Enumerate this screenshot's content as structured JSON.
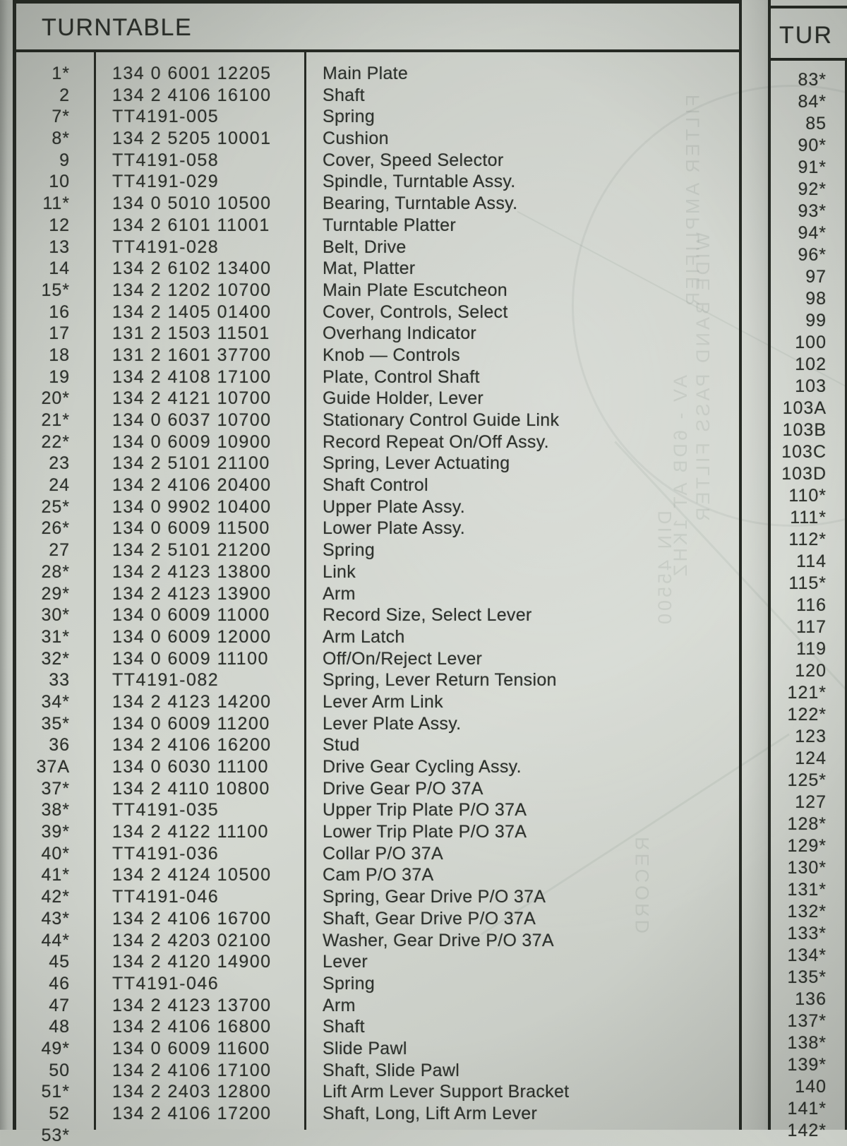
{
  "left_table": {
    "title": "TURNTABLE",
    "rows": [
      {
        "item": "1*",
        "part": "134 0 6001 12205",
        "desc": "Main Plate"
      },
      {
        "item": "2",
        "part": "134 2 4106 16100",
        "desc": "Shaft"
      },
      {
        "item": "7*",
        "part": "TT4191-005",
        "desc": "Spring"
      },
      {
        "item": "8*",
        "part": "134 2 5205 10001",
        "desc": "Cushion"
      },
      {
        "item": "9",
        "part": "TT4191-058",
        "desc": "Cover, Speed Selector"
      },
      {
        "item": "10",
        "part": "TT4191-029",
        "desc": "Spindle, Turntable Assy."
      },
      {
        "item": "11*",
        "part": "134 0 5010 10500",
        "desc": "Bearing, Turntable Assy."
      },
      {
        "item": "12",
        "part": "134 2 6101 11001",
        "desc": "Turntable Platter"
      },
      {
        "item": "13",
        "part": "TT4191-028",
        "desc": "Belt, Drive"
      },
      {
        "item": "14",
        "part": "134 2 6102 13400",
        "desc": "Mat, Platter"
      },
      {
        "item": "15*",
        "part": "134 2 1202 10700",
        "desc": "Main Plate Escutcheon"
      },
      {
        "item": "16",
        "part": "134 2 1405 01400",
        "desc": "Cover, Controls, Select"
      },
      {
        "item": "17",
        "part": "131 2 1503 11501",
        "desc": "Overhang Indicator"
      },
      {
        "item": "18",
        "part": "131 2 1601 37700",
        "desc": "Knob — Controls"
      },
      {
        "item": "19",
        "part": "134 2 4108 17100",
        "desc": "Plate, Control Shaft"
      },
      {
        "item": "20*",
        "part": "134 2 4121 10700",
        "desc": "Guide Holder, Lever"
      },
      {
        "item": "21*",
        "part": "134 0 6037 10700",
        "desc": "Stationary Control Guide Link"
      },
      {
        "item": "22*",
        "part": "134 0 6009 10900",
        "desc": "Record Repeat On/Off Assy."
      },
      {
        "item": "23",
        "part": "134 2 5101 21100",
        "desc": "Spring, Lever Actuating"
      },
      {
        "item": "24",
        "part": "134 2 4106 20400",
        "desc": "Shaft Control"
      },
      {
        "item": "25*",
        "part": "134 0 9902 10400",
        "desc": "Upper Plate Assy."
      },
      {
        "item": "26*",
        "part": "134 0 6009 11500",
        "desc": "Lower Plate Assy."
      },
      {
        "item": "27",
        "part": "134 2 5101 21200",
        "desc": "Spring"
      },
      {
        "item": "28*",
        "part": "134 2 4123 13800",
        "desc": "Link"
      },
      {
        "item": "29*",
        "part": "134 2 4123 13900",
        "desc": "Arm"
      },
      {
        "item": "30*",
        "part": "134 0 6009 11000",
        "desc": "Record Size, Select Lever"
      },
      {
        "item": "31*",
        "part": "134 0 6009 12000",
        "desc": "Arm Latch"
      },
      {
        "item": "32*",
        "part": "134 0 6009 11100",
        "desc": "Off/On/Reject Lever"
      },
      {
        "item": "33",
        "part": "TT4191-082",
        "desc": "Spring, Lever Return Tension"
      },
      {
        "item": "34*",
        "part": "134 2 4123 14200",
        "desc": "Lever Arm Link"
      },
      {
        "item": "35*",
        "part": "134 0 6009 11200",
        "desc": "Lever Plate Assy."
      },
      {
        "item": "36",
        "part": "134 2 4106 16200",
        "desc": "Stud"
      },
      {
        "item": "37A",
        "part": "134 0 6030 11100",
        "desc": "Drive Gear Cycling Assy."
      },
      {
        "item": "37*",
        "part": "134 2 4110 10800",
        "desc": "Drive Gear P/O 37A"
      },
      {
        "item": "38*",
        "part": "TT4191-035",
        "desc": "Upper Trip Plate P/O 37A"
      },
      {
        "item": "39*",
        "part": "134 2 4122 11100",
        "desc": "Lower Trip Plate P/O 37A"
      },
      {
        "item": "40*",
        "part": "TT4191-036",
        "desc": "Collar P/O 37A"
      },
      {
        "item": "41*",
        "part": "134 2 4124 10500",
        "desc": "Cam P/O 37A"
      },
      {
        "item": "42*",
        "part": "TT4191-046",
        "desc": "Spring, Gear Drive P/O 37A"
      },
      {
        "item": "43*",
        "part": "134 2 4106 16700",
        "desc": "Shaft, Gear Drive P/O 37A"
      },
      {
        "item": "44*",
        "part": "134 2 4203 02100",
        "desc": "Washer, Gear Drive P/O 37A"
      },
      {
        "item": "45",
        "part": "134 2 4120 14900",
        "desc": "Lever"
      },
      {
        "item": "46",
        "part": "TT4191-046",
        "desc": "Spring"
      },
      {
        "item": "47",
        "part": "134 2 4123 13700",
        "desc": "Arm"
      },
      {
        "item": "48",
        "part": "134 2 4106 16800",
        "desc": "Shaft"
      },
      {
        "item": "49*",
        "part": "134 0 6009 11600",
        "desc": "Slide Pawl"
      },
      {
        "item": "50",
        "part": "134 2 4106 17100",
        "desc": "Shaft, Slide Pawl"
      },
      {
        "item": "51*",
        "part": "134 2 2403 12800",
        "desc": "Lift Arm Lever Support Bracket"
      },
      {
        "item": "52",
        "part": "134 2 4106 17200",
        "desc": "Shaft, Long, Lift Arm Lever"
      }
    ],
    "partial_row_item": "53*"
  },
  "right_table": {
    "title_visible": "TUR",
    "items": [
      "83*",
      "84*",
      "85",
      "90*",
      "91*",
      "92*",
      "93*",
      "94*",
      "96*",
      "97",
      "98",
      "99",
      "100",
      "102",
      "103",
      "103A",
      "103B",
      "103C",
      "103D",
      "110*",
      "111*",
      "112*",
      "114",
      "115*",
      "116",
      "117",
      "119",
      "120",
      "121*",
      "122*",
      "123",
      "124",
      "125*",
      "127",
      "128*",
      "129*",
      "130*",
      "131*",
      "132*",
      "133*",
      "134*",
      "135*",
      "136",
      "137*",
      "138*",
      "139*",
      "140",
      "141*"
    ],
    "partial_item": "142*"
  },
  "ghost_text": [
    {
      "text": "FILTER AMPLIFIER"
    },
    {
      "text": "WIDE BAND PASS FILTER"
    },
    {
      "text": "AV - 6DB AT 1KHZ"
    },
    {
      "text": "DIN 45500"
    },
    {
      "text": "RECORD"
    }
  ]
}
